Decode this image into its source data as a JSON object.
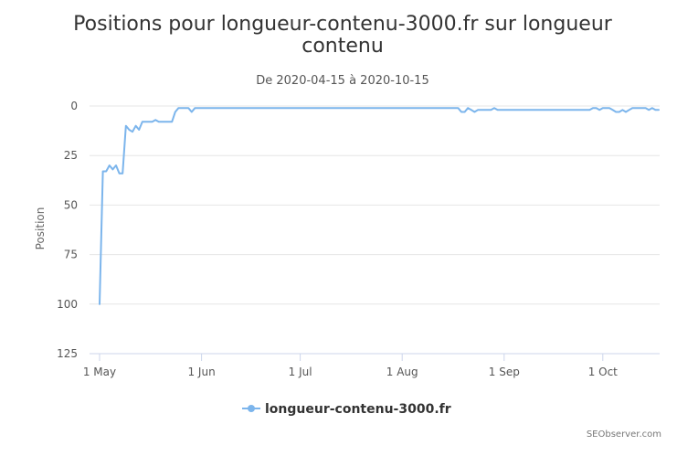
{
  "chart_data": {
    "type": "line",
    "title_lines": [
      "Positions pour longueur-contenu-3000.fr sur longueur",
      "contenu"
    ],
    "subtitle": "De 2020-04-15 à 2020-10-15",
    "ylabel": "Position",
    "ylim": [
      0,
      125
    ],
    "y_reversed": true,
    "yticks": [
      0,
      25,
      50,
      75,
      100,
      125
    ],
    "x_ticks": [
      {
        "date": "2020-05-01",
        "label": "1 May"
      },
      {
        "date": "2020-06-01",
        "label": "1 Jun"
      },
      {
        "date": "2020-07-01",
        "label": "1 Jul"
      },
      {
        "date": "2020-08-01",
        "label": "1 Aug"
      },
      {
        "date": "2020-09-01",
        "label": "1 Sep"
      },
      {
        "date": "2020-10-01",
        "label": "1 Oct"
      }
    ],
    "grid": true,
    "legend_position": "bottom-center",
    "color": "#7cb5ec",
    "series": [
      {
        "name": "longueur-contenu-3000.fr",
        "points": [
          [
            "2020-05-01",
            100
          ],
          [
            "2020-05-02",
            33
          ],
          [
            "2020-05-03",
            33
          ],
          [
            "2020-05-04",
            30
          ],
          [
            "2020-05-05",
            32
          ],
          [
            "2020-05-06",
            30
          ],
          [
            "2020-05-07",
            34
          ],
          [
            "2020-05-08",
            34
          ],
          [
            "2020-05-09",
            10
          ],
          [
            "2020-05-10",
            12
          ],
          [
            "2020-05-11",
            13
          ],
          [
            "2020-05-12",
            10
          ],
          [
            "2020-05-13",
            12
          ],
          [
            "2020-05-14",
            8
          ],
          [
            "2020-05-15",
            8
          ],
          [
            "2020-05-16",
            8
          ],
          [
            "2020-05-17",
            8
          ],
          [
            "2020-05-18",
            7
          ],
          [
            "2020-05-19",
            8
          ],
          [
            "2020-05-20",
            8
          ],
          [
            "2020-05-21",
            8
          ],
          [
            "2020-05-22",
            8
          ],
          [
            "2020-05-23",
            8
          ],
          [
            "2020-05-24",
            3
          ],
          [
            "2020-05-25",
            1
          ],
          [
            "2020-05-26",
            1
          ],
          [
            "2020-05-27",
            1
          ],
          [
            "2020-05-28",
            1
          ],
          [
            "2020-05-29",
            3
          ],
          [
            "2020-05-30",
            1
          ],
          [
            "2020-07-15",
            1
          ],
          [
            "2020-08-17",
            1
          ],
          [
            "2020-08-18",
            1
          ],
          [
            "2020-08-19",
            3
          ],
          [
            "2020-08-20",
            3
          ],
          [
            "2020-08-21",
            1
          ],
          [
            "2020-08-22",
            2
          ],
          [
            "2020-08-23",
            3
          ],
          [
            "2020-08-24",
            2
          ],
          [
            "2020-08-25",
            2
          ],
          [
            "2020-08-26",
            2
          ],
          [
            "2020-08-27",
            2
          ],
          [
            "2020-08-28",
            2
          ],
          [
            "2020-08-29",
            1
          ],
          [
            "2020-08-30",
            2
          ],
          [
            "2020-09-27",
            2
          ],
          [
            "2020-09-28",
            1
          ],
          [
            "2020-09-29",
            1
          ],
          [
            "2020-09-30",
            2
          ],
          [
            "2020-10-01",
            1
          ],
          [
            "2020-10-02",
            1
          ],
          [
            "2020-10-03",
            1
          ],
          [
            "2020-10-04",
            2
          ],
          [
            "2020-10-05",
            3
          ],
          [
            "2020-10-06",
            3
          ],
          [
            "2020-10-07",
            2
          ],
          [
            "2020-10-08",
            3
          ],
          [
            "2020-10-09",
            2
          ],
          [
            "2020-10-10",
            1
          ],
          [
            "2020-10-11",
            1
          ],
          [
            "2020-10-12",
            1
          ],
          [
            "2020-10-13",
            1
          ],
          [
            "2020-10-14",
            1
          ],
          [
            "2020-10-15",
            2
          ],
          [
            "2020-10-16",
            1
          ],
          [
            "2020-10-17",
            2
          ],
          [
            "2020-10-18",
            2
          ]
        ]
      }
    ]
  },
  "credits": "SEObserver.com"
}
